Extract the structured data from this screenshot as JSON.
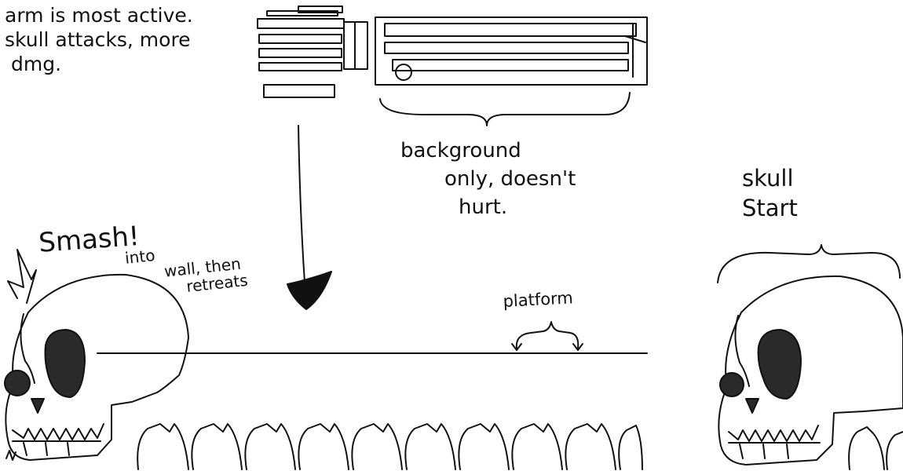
{
  "annotations": {
    "arm_behavior": [
      "arm is most active.",
      "skull attacks, more",
      "dmg."
    ],
    "background_note": [
      "background",
      "only, doesn't",
      "hurt."
    ],
    "skull_start": [
      "skull",
      "Start"
    ],
    "smash": "Smash!",
    "into_wall": [
      "into",
      "wall, then",
      "retreats"
    ],
    "platform": "platform"
  },
  "colors": {
    "ink": "#111111",
    "fill": "#2a2a2a",
    "paper": "#ffffff"
  }
}
